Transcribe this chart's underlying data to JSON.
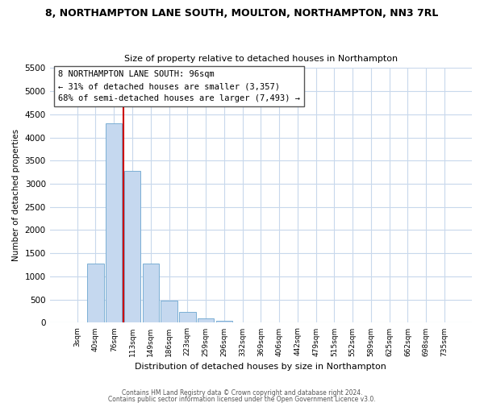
{
  "title": "8, NORTHAMPTON LANE SOUTH, MOULTON, NORTHAMPTON, NN3 7RL",
  "subtitle": "Size of property relative to detached houses in Northampton",
  "xlabel": "Distribution of detached houses by size in Northampton",
  "ylabel": "Number of detached properties",
  "bar_labels": [
    "3sqm",
    "40sqm",
    "76sqm",
    "113sqm",
    "149sqm",
    "186sqm",
    "223sqm",
    "259sqm",
    "296sqm",
    "332sqm",
    "369sqm",
    "406sqm",
    "442sqm",
    "479sqm",
    "515sqm",
    "552sqm",
    "589sqm",
    "625sqm",
    "662sqm",
    "698sqm",
    "735sqm"
  ],
  "bar_values": [
    0,
    1270,
    4300,
    3280,
    1280,
    480,
    240,
    90,
    50,
    0,
    0,
    0,
    0,
    0,
    0,
    0,
    0,
    0,
    0,
    0,
    0
  ],
  "bar_color": "#c5d8ef",
  "bar_edge_color": "#7bafd4",
  "vline_color": "#cc0000",
  "vline_x": 2.5,
  "ylim": [
    0,
    5500
  ],
  "yticks": [
    0,
    500,
    1000,
    1500,
    2000,
    2500,
    3000,
    3500,
    4000,
    4500,
    5000,
    5500
  ],
  "annotation_title": "8 NORTHAMPTON LANE SOUTH: 96sqm",
  "annotation_line1": "← 31% of detached houses are smaller (3,357)",
  "annotation_line2": "68% of semi-detached houses are larger (7,493) →",
  "footer1": "Contains HM Land Registry data © Crown copyright and database right 2024.",
  "footer2": "Contains public sector information licensed under the Open Government Licence v3.0.",
  "background_color": "#ffffff",
  "grid_color": "#c8d8ec"
}
